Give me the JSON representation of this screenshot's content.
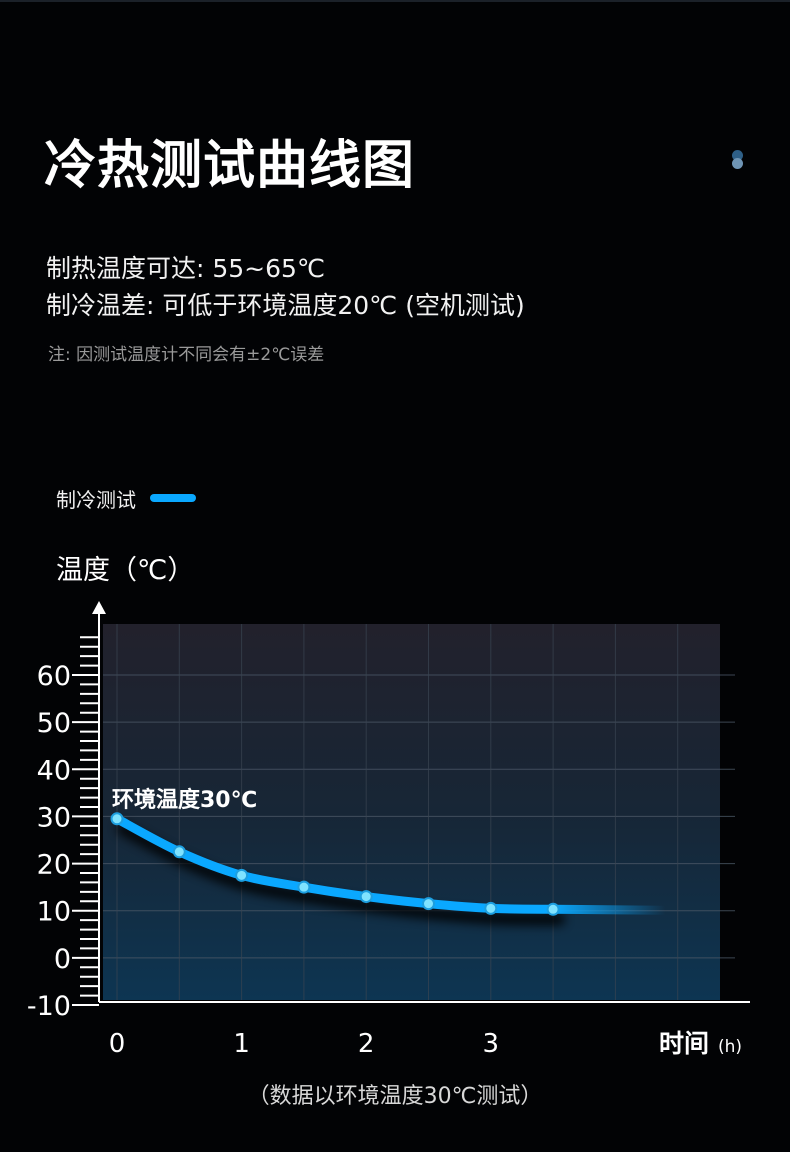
{
  "page": {
    "title": "冷热测试曲线图",
    "spec_heat": "制热温度可达: 55~65℃",
    "spec_cool": "制冷温差: 可低于环境温度20℃ (空机测试)",
    "note": "注: 因测试温度计不同会有±2℃误差",
    "caption": "（数据以环境温度30℃测试）"
  },
  "chart_data": {
    "type": "line",
    "title": "",
    "xlabel": "时间",
    "xlabel_unit": "(h)",
    "ylabel": "温度（℃）",
    "xlim": [
      -0.15,
      4.9
    ],
    "ylim": [
      -10,
      70
    ],
    "x_ticks": [
      "0",
      "1",
      "2",
      "3"
    ],
    "y_ticks": [
      "60",
      "50",
      "40",
      "30",
      "20",
      "10",
      "0",
      "-10"
    ],
    "grid": true,
    "legend": "top-left",
    "annotation": "环境温度30℃",
    "series": [
      {
        "name": "制冷测试",
        "color": "#0aa8ff",
        "x": [
          0,
          0.5,
          1,
          1.5,
          2,
          2.5,
          3,
          3.5
        ],
        "values": [
          29.5,
          22.5,
          17.5,
          15,
          13,
          11.5,
          10.5,
          10.3
        ],
        "tail_x": 4.4,
        "tail_value": 10.1
      }
    ]
  }
}
